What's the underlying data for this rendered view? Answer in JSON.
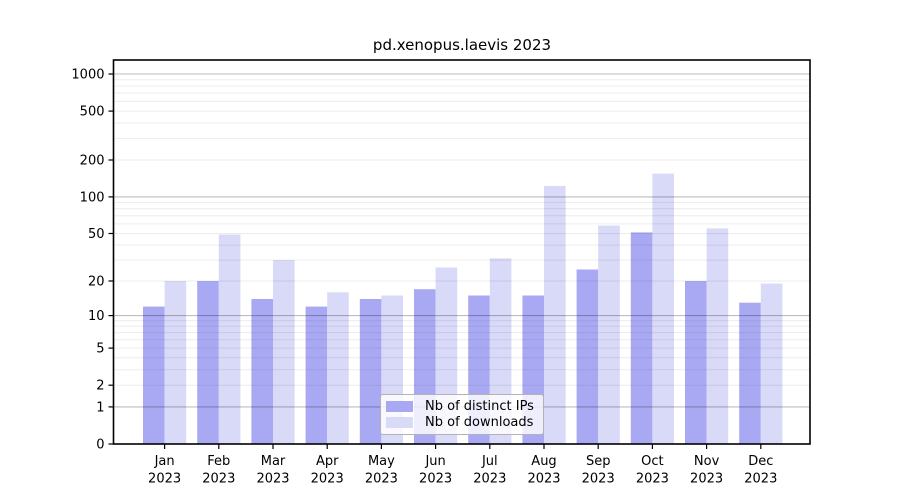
{
  "chart_data": {
    "type": "bar",
    "title": "pd.xenopus.laevis 2023",
    "categories": [
      "Jan",
      "Feb",
      "Mar",
      "Apr",
      "May",
      "Jun",
      "Jul",
      "Aug",
      "Sep",
      "Oct",
      "Nov",
      "Dec"
    ],
    "year": "2023",
    "series": [
      {
        "name": "Nb of distinct IPs",
        "color": "#a9a9f3",
        "values": [
          12,
          20,
          14,
          12,
          14,
          17,
          15,
          15,
          25,
          51,
          20,
          13
        ]
      },
      {
        "name": "Nb of downloads",
        "color": "#d9d9f8",
        "values": [
          20,
          49,
          30,
          16,
          15,
          26,
          31,
          123,
          58,
          155,
          55,
          19
        ]
      }
    ],
    "y_ticks": [
      0,
      1,
      2,
      5,
      10,
      20,
      50,
      100,
      200,
      500,
      1000
    ],
    "scale": "log10(value+1)",
    "ylim": [
      0,
      1300
    ],
    "grid": {
      "major_at": [
        1,
        10,
        100,
        1000
      ],
      "minor": "n×10^k for n=2..9"
    },
    "legend_position": "bottom-center-inside",
    "colors": {
      "axis": "#000000",
      "gridline_major": "#bdbdbd",
      "gridline_minor": "#ebebeb",
      "background": "#ffffff"
    }
  }
}
